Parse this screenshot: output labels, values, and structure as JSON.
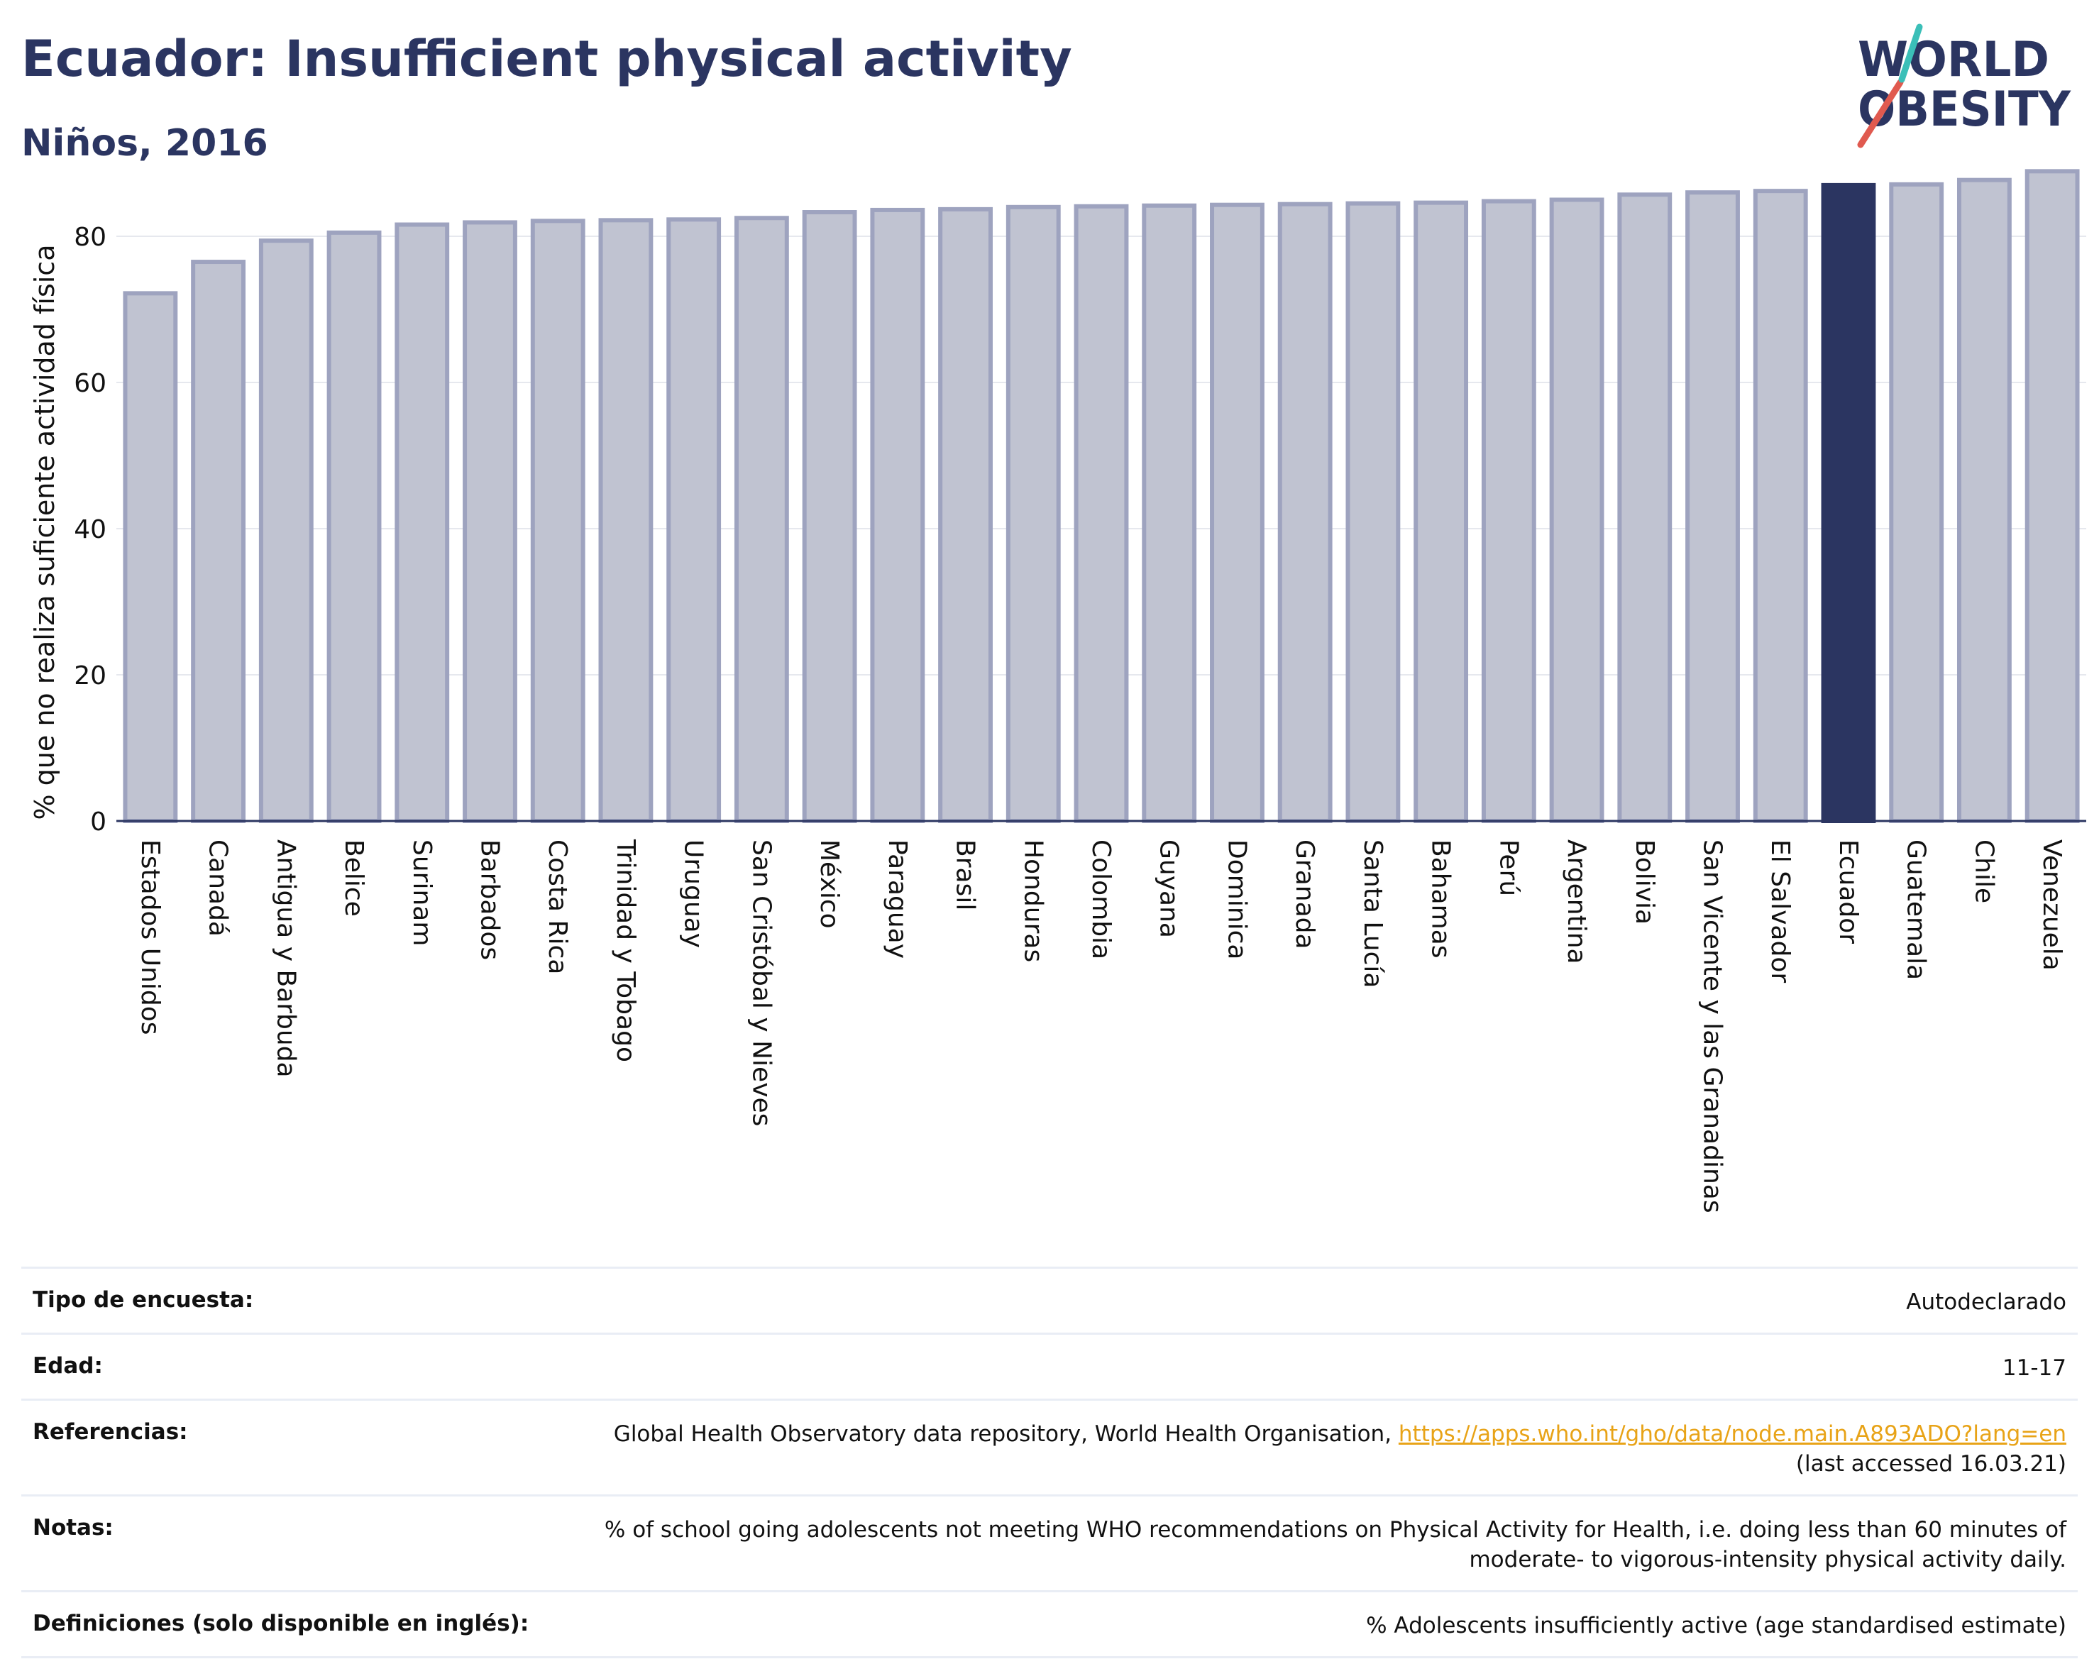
{
  "header": {
    "title": "Ecuador: Insufficient physical activity",
    "subtitle": "Niños, 2016"
  },
  "logo": {
    "line1": "WORLD",
    "line2": "OBESITY",
    "colors": {
      "text": "#2b3561",
      "slash_red": "#e05a4f",
      "slash_teal": "#3bbfb8"
    }
  },
  "colors": {
    "bar_fill": "#c0c3d1",
    "bar_stroke": "#9ea3bf",
    "highlight": "#2b3561",
    "grid": "#e6e8ee",
    "axis": "#2b3561"
  },
  "chart_data": {
    "type": "bar",
    "title": "",
    "xlabel": "",
    "ylabel": "% que no realiza suficiente actividad física",
    "ylim": [
      0,
      90
    ],
    "yticks": [
      0,
      20,
      40,
      60,
      80
    ],
    "grid": true,
    "highlight": "Ecuador",
    "categories": [
      "Estados Unidos",
      "Canadá",
      "Antigua y Barbuda",
      "Belice",
      "Surinam",
      "Barbados",
      "Costa Rica",
      "Trinidad y Tobago",
      "Uruguay",
      "San Cristóbal y Nieves",
      "México",
      "Paraguay",
      "Brasil",
      "Honduras",
      "Colombia",
      "Guyana",
      "Dominica",
      "Granada",
      "Santa Lucía",
      "Bahamas",
      "Perú",
      "Argentina",
      "Bolivia",
      "San Vicente y las Granadinas",
      "El Salvador",
      "Ecuador",
      "Guatemala",
      "Chile",
      "Venezuela"
    ],
    "values": [
      72.2,
      76.5,
      79.4,
      80.5,
      81.6,
      81.9,
      82.1,
      82.2,
      82.3,
      82.5,
      83.3,
      83.6,
      83.7,
      84.0,
      84.1,
      84.2,
      84.3,
      84.4,
      84.5,
      84.6,
      84.8,
      85.0,
      85.7,
      86.0,
      86.2,
      87.0,
      87.1,
      87.7,
      88.9
    ]
  },
  "info_table": [
    {
      "label": "Tipo de encuesta:",
      "value": "Autodeclarado"
    },
    {
      "label": "Edad:",
      "value": "11-17"
    },
    {
      "label": "Referencias:",
      "value": "Global Health Observatory data repository, World Health Organisation,",
      "link": "https://apps.who.int/gho/data/node.main.A893ADO?lang=en",
      "value2": "(last accessed 16.03.21)"
    },
    {
      "label": "Notas:",
      "value": "% of school going adolescents not meeting WHO recommendations on Physical Activity for Health, i.e. doing less than 60 minutes of moderate- to vigorous-intensity physical activity daily."
    },
    {
      "label": "Definiciones (solo disponible en inglés):",
      "value": "% Adolescents insufficiently active (age standardised estimate)"
    }
  ]
}
